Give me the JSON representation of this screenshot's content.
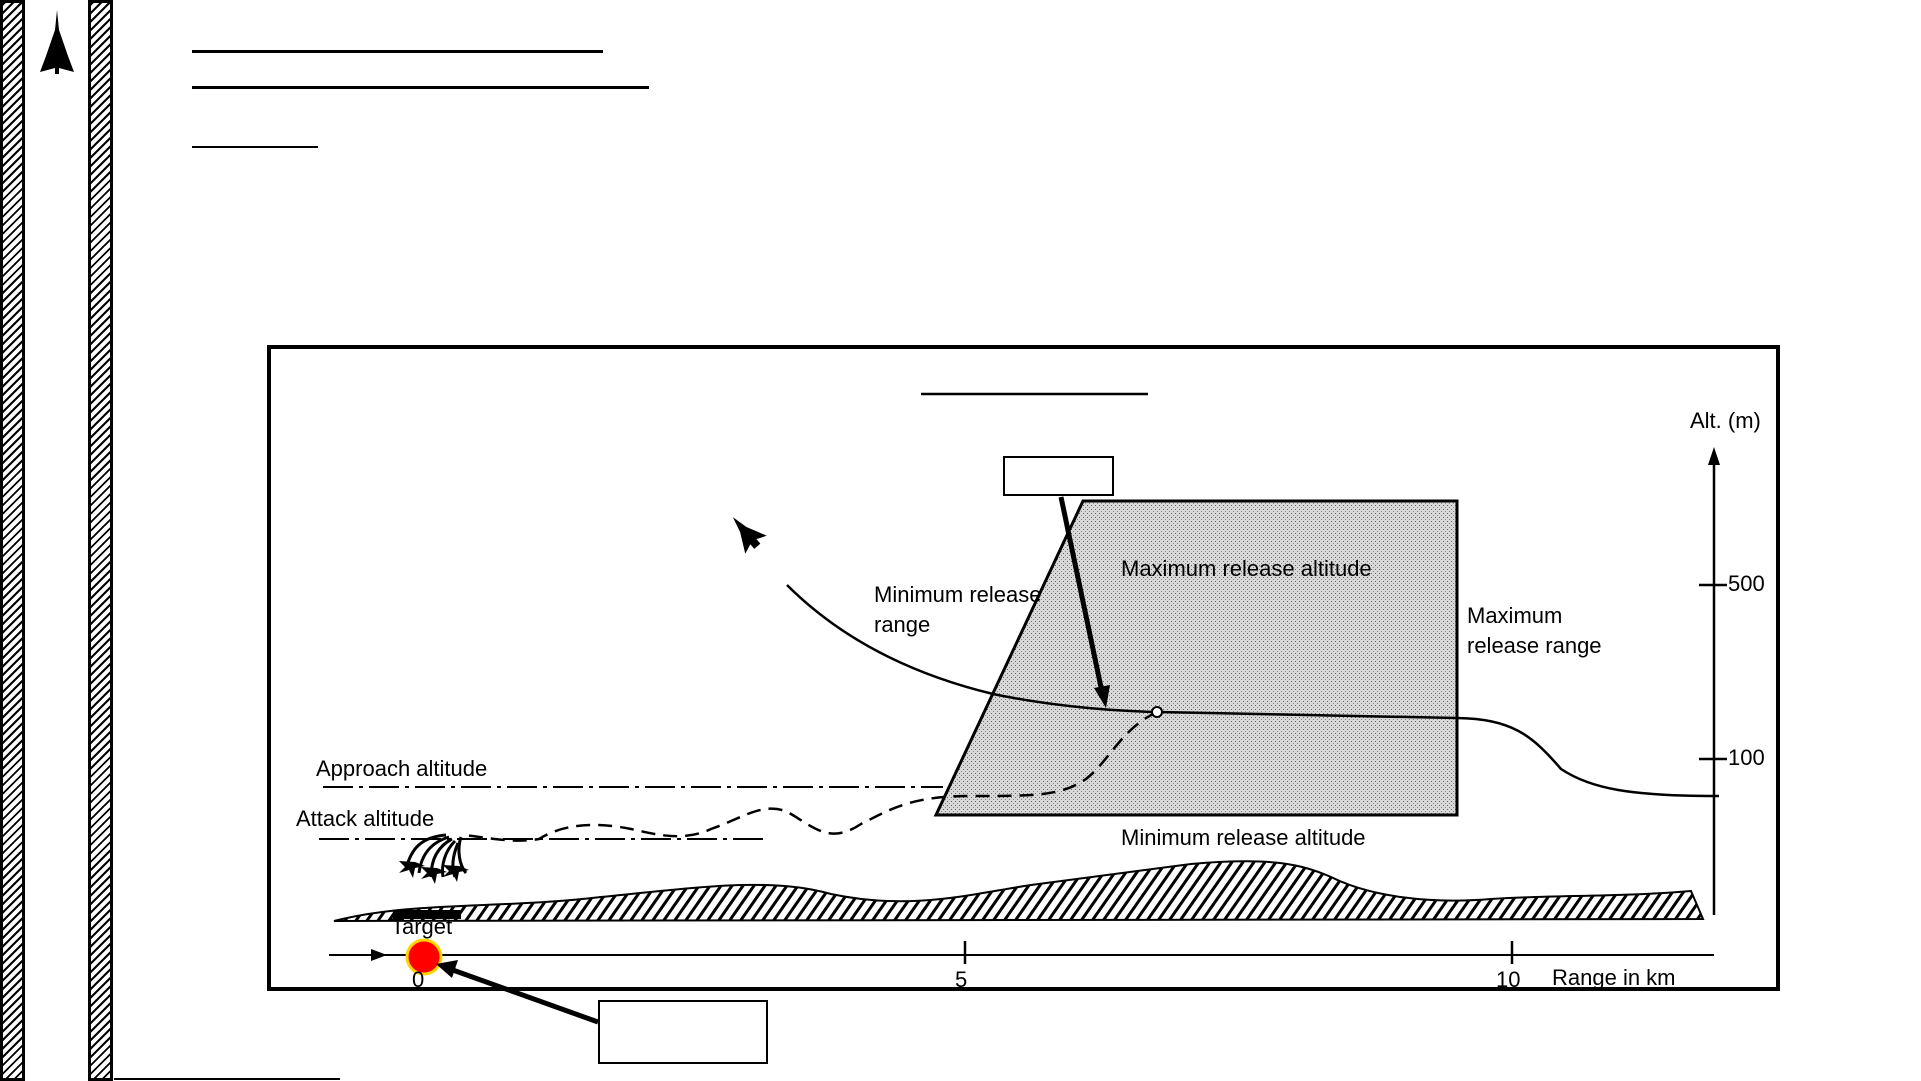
{
  "diagram": {
    "alt_axis": {
      "label": "Alt. (m)",
      "ticks": [
        {
          "value": 500,
          "label": "500"
        },
        {
          "value": 100,
          "label": "100"
        }
      ]
    },
    "range_axis": {
      "label": "Range in km",
      "ticks": [
        {
          "value": 0,
          "label": "0"
        },
        {
          "value": 5,
          "label": "5"
        },
        {
          "value": 10,
          "label": "10"
        }
      ]
    },
    "labels": {
      "max_release_altitude": "Maximum release altitude",
      "min_release_altitude": "Minimum release altitude",
      "min_release_range": "Minimum release\nrange",
      "max_release_range": "Maximum\nrelease range",
      "approach_altitude": "Approach altitude",
      "attack_altitude": "Attack altitude",
      "target": "Target"
    },
    "colors": {
      "target_marker_fill": "#ff0000",
      "target_marker_ring": "#ffd400",
      "release_zone_fill": "#d4d4d4"
    }
  }
}
